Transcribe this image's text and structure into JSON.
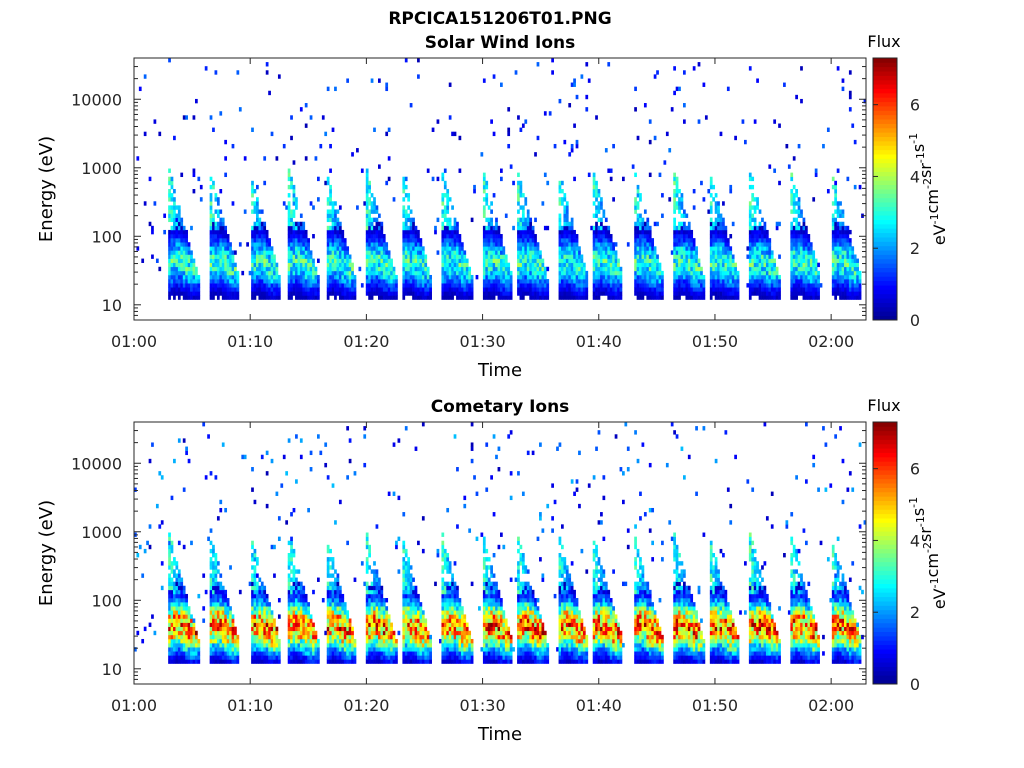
{
  "page": {
    "title": "RPCICA151206T01.PNG"
  },
  "colorbar_title": "Flux",
  "colorbar_unit_parts": [
    "eV",
    "-1",
    "cm",
    "-2",
    "sr",
    "-1",
    "s",
    "-1"
  ],
  "colormap": [
    "#00008f",
    "#0000ff",
    "#0080ff",
    "#00ffff",
    "#80ff80",
    "#ffff00",
    "#ff8000",
    "#ff0000",
    "#800000"
  ],
  "chart_data": [
    {
      "type": "heatmap",
      "title": "Solar Wind Ions",
      "xlabel": "Time",
      "ylabel": "Energy (eV)",
      "y_scale": "log",
      "ylim": [
        6,
        40000
      ],
      "xlim": [
        "01:00",
        "02:03"
      ],
      "x_ticks": [
        "01:00",
        "01:10",
        "01:20",
        "01:30",
        "01:40",
        "01:50",
        "02:00"
      ],
      "y_ticks": [
        "10",
        "100",
        "1000",
        "10000"
      ],
      "y_tick_values": [
        10,
        100,
        1000,
        10000
      ],
      "colorbar": {
        "label": "Flux",
        "range": [
          0,
          7.3
        ],
        "ticks": [
          "0",
          "2",
          "4",
          "6"
        ]
      },
      "sweep_start_times": [
        "01:03",
        "01:06.5",
        "01:10",
        "01:13.3",
        "01:16.5",
        "01:20",
        "01:23",
        "01:26.5",
        "01:30",
        "01:33",
        "01:36.5",
        "01:39.5",
        "01:43",
        "01:46.5",
        "01:49.5",
        "01:53",
        "01:56.5",
        "02:00"
      ],
      "typical_peak_energy_eV": 40,
      "typical_peak_flux": 3.5,
      "background_max_flux": 1.5
    },
    {
      "type": "heatmap",
      "title": "Cometary Ions",
      "xlabel": "Time",
      "ylabel": "Energy (eV)",
      "y_scale": "log",
      "ylim": [
        6,
        40000
      ],
      "xlim": [
        "01:00",
        "02:03"
      ],
      "x_ticks": [
        "01:00",
        "01:10",
        "01:20",
        "01:30",
        "01:40",
        "01:50",
        "02:00"
      ],
      "y_ticks": [
        "10",
        "100",
        "1000",
        "10000"
      ],
      "y_tick_values": [
        10,
        100,
        1000,
        10000
      ],
      "colorbar": {
        "label": "Flux",
        "range": [
          0,
          7.3
        ],
        "ticks": [
          "0",
          "2",
          "4",
          "6"
        ]
      },
      "sweep_start_times": [
        "01:03",
        "01:06.5",
        "01:10",
        "01:13.3",
        "01:16.5",
        "01:20",
        "01:23",
        "01:26.5",
        "01:30",
        "01:33",
        "01:36.5",
        "01:39.5",
        "01:43",
        "01:46.5",
        "01:49.5",
        "01:53",
        "01:56.5",
        "02:00"
      ],
      "typical_peak_energy_eV": 40,
      "typical_peak_flux": 6.5,
      "background_max_flux": 2
    }
  ]
}
